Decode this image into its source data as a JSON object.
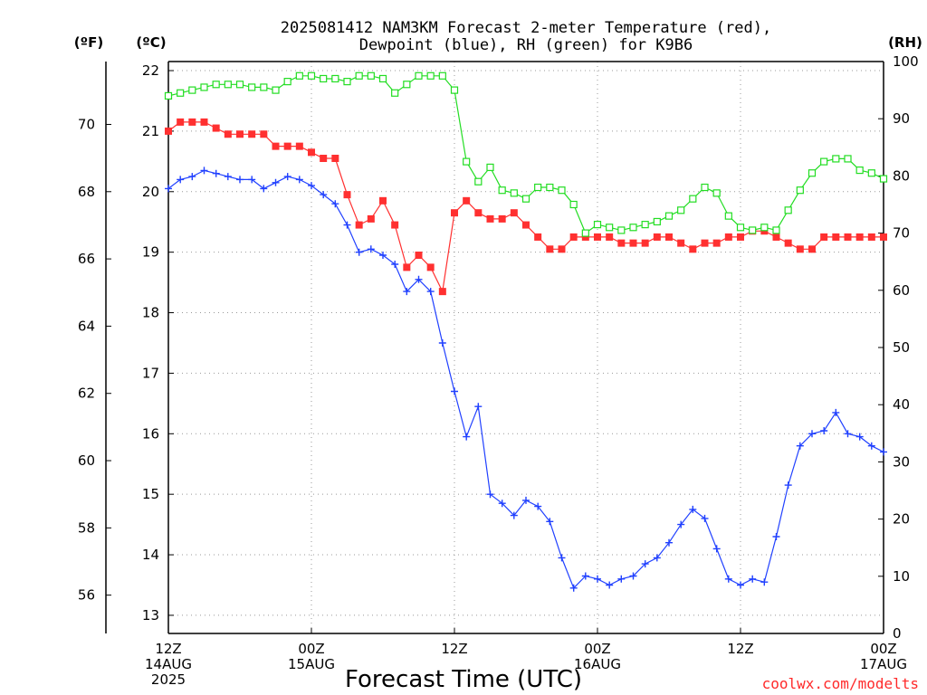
{
  "chart_data": {
    "type": "line",
    "title_line1": "2025081412 NAM3KM Forecast 2-meter Temperature (red),",
    "title_line2": "Dewpoint (blue), RH (green) for K9B6",
    "unit_f": "(ºF)",
    "unit_c": "(ºC)",
    "unit_rh": "(RH)",
    "xlabel": "Forecast Time (UTC)",
    "credit": "coolwx.com/modelts",
    "xlim_hours": [
      0,
      60
    ],
    "ylim_c": [
      12.7,
      22.15
    ],
    "ylim_rh": [
      0,
      100
    ],
    "c_ticks": [
      "13",
      "14",
      "15",
      "16",
      "17",
      "18",
      "19",
      "20",
      "21",
      "22"
    ],
    "f_ticks": [
      "56",
      "58",
      "60",
      "62",
      "64",
      "66",
      "68",
      "70"
    ],
    "rh_ticks": [
      "0",
      "10",
      "20",
      "30",
      "40",
      "50",
      "60",
      "70",
      "80",
      "90",
      "100"
    ],
    "x_ticks": [
      {
        "hour": 0,
        "lines": [
          "12Z",
          "14AUG",
          "2025"
        ]
      },
      {
        "hour": 12,
        "lines": [
          "00Z",
          "15AUG"
        ]
      },
      {
        "hour": 24,
        "lines": [
          "12Z"
        ]
      },
      {
        "hour": 36,
        "lines": [
          "00Z",
          "16AUG"
        ]
      },
      {
        "hour": 48,
        "lines": [
          "12Z"
        ]
      },
      {
        "hour": 60,
        "lines": [
          "00Z",
          "17AUG"
        ]
      }
    ],
    "grid": true,
    "series": [
      {
        "key": "temp",
        "color": "#ff3030",
        "marker": "filled-square",
        "units": "C",
        "values": [
          21.0,
          21.15,
          21.15,
          21.15,
          21.05,
          20.95,
          20.95,
          20.95,
          20.95,
          20.75,
          20.75,
          20.75,
          20.65,
          20.55,
          20.55,
          19.95,
          19.45,
          19.55,
          19.85,
          19.45,
          18.75,
          18.95,
          18.75,
          18.35,
          19.65,
          19.85,
          19.65,
          19.55,
          19.55,
          19.65,
          19.45,
          19.25,
          19.05,
          19.05,
          19.25,
          19.25,
          19.25,
          19.25,
          19.15,
          19.15,
          19.15,
          19.25,
          19.25,
          19.15,
          19.05,
          19.15,
          19.15,
          19.25,
          19.25,
          19.35,
          19.35,
          19.25,
          19.15,
          19.05,
          19.05,
          19.25,
          19.25,
          19.25,
          19.25,
          19.25,
          19.25
        ]
      },
      {
        "key": "dewpoint",
        "color": "#2040ff",
        "marker": "plus",
        "units": "C",
        "values": [
          20.05,
          20.2,
          20.25,
          20.35,
          20.3,
          20.25,
          20.2,
          20.2,
          20.05,
          20.15,
          20.25,
          20.2,
          20.1,
          19.95,
          19.8,
          19.45,
          19.0,
          19.05,
          18.95,
          18.8,
          18.35,
          18.55,
          18.35,
          17.5,
          16.7,
          15.95,
          16.45,
          15.0,
          14.85,
          14.65,
          14.9,
          14.8,
          14.55,
          13.95,
          13.45,
          13.65,
          13.6,
          13.5,
          13.6,
          13.65,
          13.85,
          13.95,
          14.2,
          14.5,
          14.75,
          14.6,
          14.1,
          13.6,
          13.5,
          13.6,
          13.55,
          14.3,
          15.15,
          15.8,
          16.0,
          16.05,
          16.35,
          16.0,
          15.95,
          15.8,
          15.7
        ]
      },
      {
        "key": "rh",
        "color": "#22dd22",
        "marker": "open-square",
        "units": "%",
        "values": [
          94,
          94.5,
          95,
          95.5,
          96,
          96,
          96,
          95.5,
          95.5,
          95,
          96.5,
          97.5,
          97.5,
          97,
          97,
          96.5,
          97.5,
          97.5,
          97,
          94.5,
          96,
          97.5,
          97.5,
          97.5,
          95,
          82.5,
          79,
          81.5,
          77.5,
          77,
          76,
          78,
          78,
          77.5,
          75,
          70,
          71.5,
          71,
          70.5,
          71,
          71.5,
          72,
          73,
          74,
          76,
          78,
          77,
          73,
          71,
          70.5,
          71,
          70.5,
          74,
          77.5,
          80.5,
          82.5,
          83,
          83,
          81,
          80.5,
          79.5
        ]
      }
    ]
  }
}
